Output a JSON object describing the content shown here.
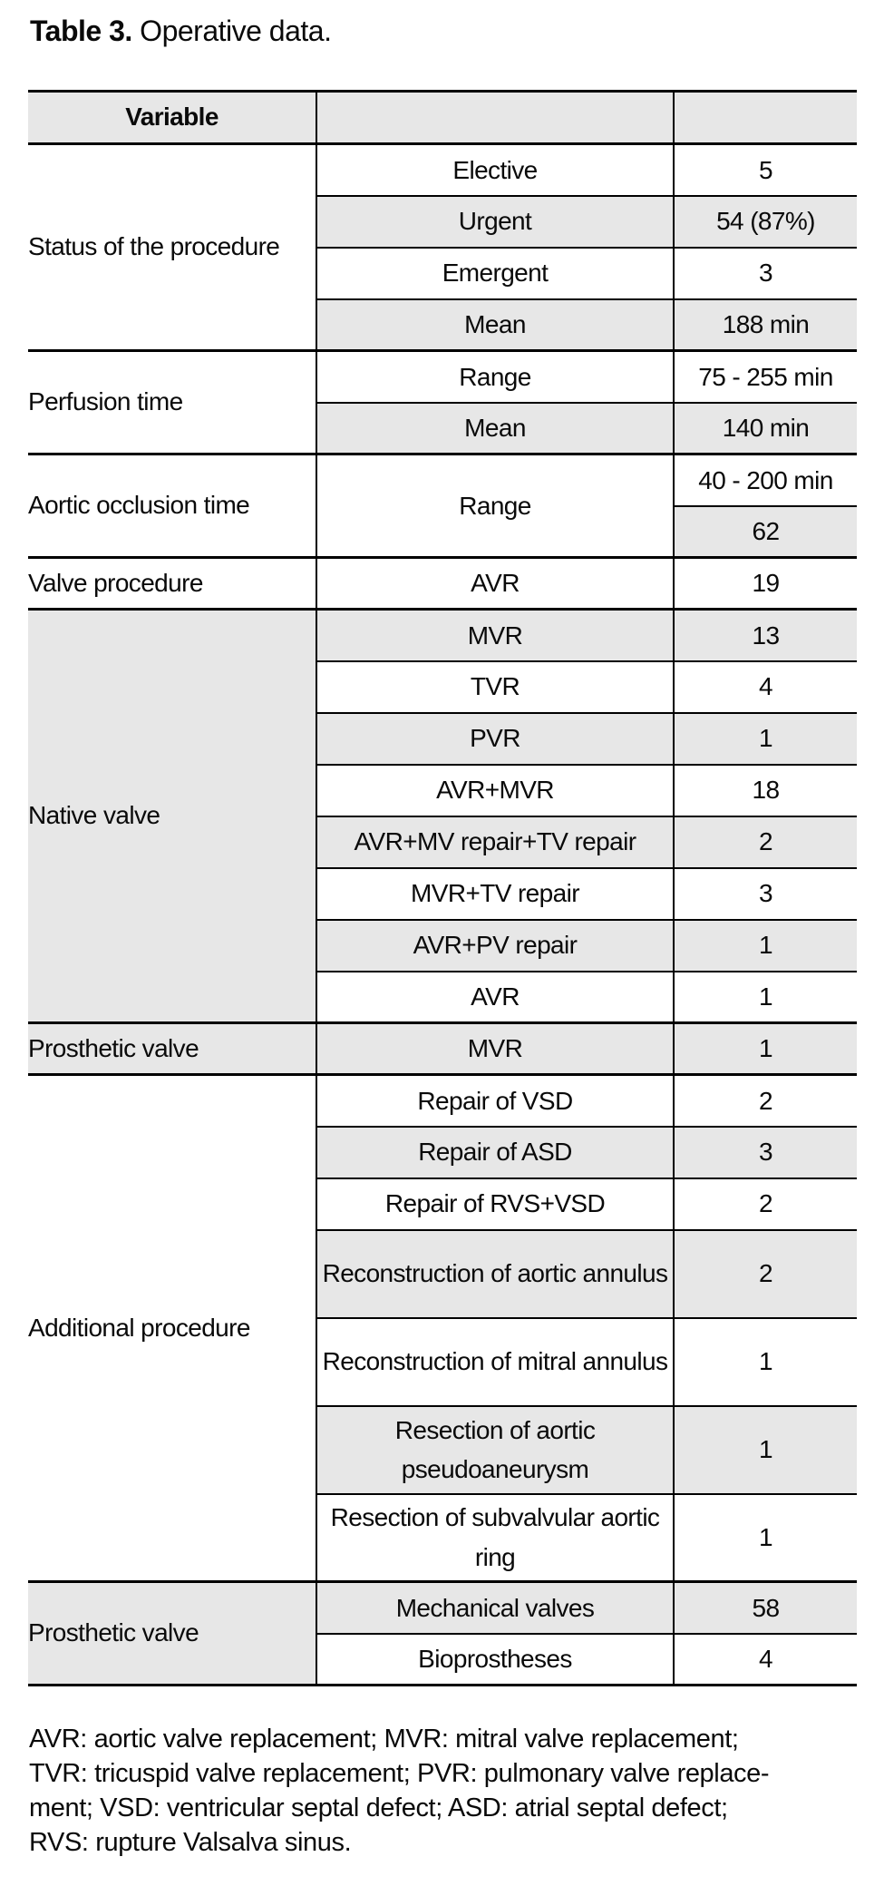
{
  "title": {
    "label": "Table 3.",
    "caption": " Operative data."
  },
  "colors": {
    "row_shade": "#e7e7e7",
    "border": "#000000",
    "text": "#0a0a0a",
    "background": "#ffffff"
  },
  "table": {
    "header": [
      "Variable",
      "",
      ""
    ],
    "groups": [
      {
        "label": "Status of the procedure",
        "label_shaded": false,
        "rows": [
          {
            "item": "Elective",
            "value": "5",
            "shaded": false
          },
          {
            "item": "Urgent",
            "value": "54 (87%)",
            "shaded": true
          },
          {
            "item": "Emergent",
            "value": "3",
            "shaded": false
          },
          {
            "item": "Mean",
            "value": "188 min",
            "shaded": true
          }
        ]
      },
      {
        "label": "Perfusion time",
        "label_shaded": false,
        "rows": [
          {
            "item": "Range",
            "value": "75 - 255 min",
            "shaded": false
          },
          {
            "item": "Mean",
            "value": "140 min",
            "shaded": true
          }
        ]
      },
      {
        "label": "Aortic occlusion time",
        "label_shaded": false,
        "merged_item": "Range",
        "rows": [
          {
            "value": "40 - 200 min",
            "shaded": false
          },
          {
            "value": "62",
            "shaded": true
          }
        ]
      },
      {
        "label": "Valve procedure",
        "label_shaded": false,
        "rows": [
          {
            "item": "AVR",
            "value": "19",
            "shaded": false
          }
        ]
      },
      {
        "label": "Native valve",
        "label_shaded": true,
        "rows": [
          {
            "item": "MVR",
            "value": "13",
            "shaded": true
          },
          {
            "item": "TVR",
            "value": "4",
            "shaded": false
          },
          {
            "item": "PVR",
            "value": "1",
            "shaded": true
          },
          {
            "item": "AVR+MVR",
            "value": "18",
            "shaded": false
          },
          {
            "item": "AVR+MV repair+TV repair",
            "value": "2",
            "shaded": true
          },
          {
            "item": "MVR+TV repair",
            "value": "3",
            "shaded": false
          },
          {
            "item": "AVR+PV repair",
            "value": "1",
            "shaded": true
          },
          {
            "item": "AVR",
            "value": "1",
            "shaded": false
          }
        ]
      },
      {
        "label": "Prosthetic valve",
        "label_shaded": true,
        "rows": [
          {
            "item": "MVR",
            "value": "1",
            "shaded": true
          }
        ]
      },
      {
        "label": "Additional procedure",
        "label_shaded": false,
        "rows": [
          {
            "item": "Repair of VSD",
            "value": "2",
            "shaded": false
          },
          {
            "item": "Repair of ASD",
            "value": "3",
            "shaded": true
          },
          {
            "item": "Repair of RVS+VSD",
            "value": "2",
            "shaded": false
          },
          {
            "item": "Reconstruction of aortic annulus",
            "value": "2",
            "shaded": true,
            "tall": true
          },
          {
            "item": "Reconstruction of mitral annulus",
            "value": "1",
            "shaded": false,
            "tall": true
          },
          {
            "item": "Resection of aortic pseudoaneurysm",
            "value": "1",
            "shaded": true,
            "tall": true
          },
          {
            "item": "Resection of subvalvular aortic ring",
            "value": "1",
            "shaded": false,
            "tall": true
          }
        ]
      },
      {
        "label": "Prosthetic valve",
        "label_shaded": true,
        "rows": [
          {
            "item": "Mechanical valves",
            "value": "58",
            "shaded": true
          },
          {
            "item": "Bioprostheses",
            "value": "4",
            "shaded": false
          }
        ]
      }
    ]
  },
  "footnote": {
    "lines": [
      "AVR: aortic valve replacement; MVR: mitral valve replacement;",
      "TVR: tricuspid valve replacement; PVR: pulmonary valve replace-",
      "ment; VSD: ventricular septal defect; ASD: atrial septal defect;",
      "RVS: rupture Valsalva sinus."
    ]
  }
}
